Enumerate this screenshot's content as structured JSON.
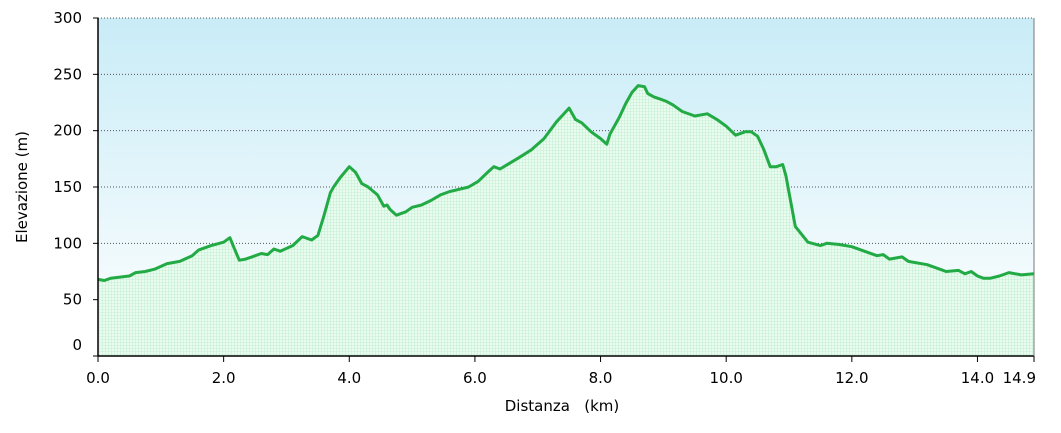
{
  "chart_data": {
    "type": "area",
    "title": "",
    "xlabel": "Distanza   (km)",
    "ylabel": "Elevazione (m)",
    "xlim": [
      0,
      14.9
    ],
    "ylim": [
      0,
      300
    ],
    "x_ticks": [
      0,
      2,
      4,
      6,
      8,
      10,
      12,
      14,
      14.9
    ],
    "x_tick_labels": [
      "0.0",
      "2.0",
      "4.0",
      "6.0",
      "8.0",
      "10.0",
      "12.0",
      "14.0",
      "14.9"
    ],
    "y_ticks": [
      0,
      50,
      100,
      150,
      200,
      250,
      300
    ],
    "y_tick_labels": [
      "0",
      "50",
      "100",
      "150",
      "200",
      "250",
      "300"
    ],
    "grid": "horizontal dotted",
    "legend": "none",
    "colors": {
      "line": "#22aa44",
      "fill": "#e3fbea",
      "bg_top": "#c9ecf7",
      "bg_bottom": "#ffffff",
      "grid": "#555555"
    },
    "series": [
      {
        "x": [
          0.0,
          0.1,
          0.2,
          0.35,
          0.5,
          0.6,
          0.75,
          0.9,
          1.1,
          1.3,
          1.5,
          1.6,
          1.8,
          2.0,
          2.1,
          2.15,
          2.25,
          2.35,
          2.45,
          2.6,
          2.7,
          2.8,
          2.9,
          3.1,
          3.25,
          3.4,
          3.5,
          3.6,
          3.7,
          3.75,
          3.85,
          4.0,
          4.1,
          4.2,
          4.3,
          4.45,
          4.55,
          4.6,
          4.65,
          4.75,
          4.9,
          5.0,
          5.15,
          5.3,
          5.45,
          5.6,
          5.75,
          5.9,
          6.05,
          6.2,
          6.3,
          6.4,
          6.55,
          6.7,
          6.9,
          7.1,
          7.3,
          7.4,
          7.5,
          7.6,
          7.7,
          7.85,
          8.0,
          8.1,
          8.15,
          8.3,
          8.4,
          8.5,
          8.6,
          8.7,
          8.75,
          8.85,
          8.95,
          9.05,
          9.15,
          9.3,
          9.5,
          9.7,
          9.85,
          10.0,
          10.15,
          10.3,
          10.4,
          10.5,
          10.6,
          10.7,
          10.8,
          10.9,
          10.95,
          11.1,
          11.3,
          11.5,
          11.6,
          11.8,
          12.0,
          12.2,
          12.4,
          12.5,
          12.6,
          12.8,
          12.9,
          13.2,
          13.4,
          13.5,
          13.7,
          13.8,
          13.9,
          14.0,
          14.1,
          14.2,
          14.35,
          14.5,
          14.7,
          14.9
        ],
        "y": [
          68,
          67,
          69,
          70,
          71,
          74,
          75,
          77,
          82,
          84,
          89,
          94,
          98,
          101,
          105,
          98,
          85,
          86,
          88,
          91,
          90,
          95,
          93,
          98,
          106,
          103,
          107,
          125,
          145,
          150,
          158,
          168,
          163,
          153,
          150,
          143,
          133,
          134,
          130,
          125,
          128,
          132,
          134,
          138,
          143,
          146,
          148,
          150,
          155,
          163,
          168,
          166,
          171,
          176,
          183,
          193,
          208,
          214,
          220,
          210,
          207,
          199,
          193,
          188,
          197,
          212,
          224,
          234,
          240,
          239,
          233,
          230,
          228,
          226,
          223,
          217,
          213,
          215,
          210,
          204,
          196,
          199,
          199,
          195,
          183,
          168,
          168,
          170,
          160,
          115,
          101,
          98,
          100,
          99,
          97,
          93,
          89,
          90,
          86,
          88,
          84,
          81,
          77,
          75,
          76,
          73,
          75,
          71,
          69,
          69,
          71,
          74,
          72,
          73
        ]
      }
    ]
  }
}
